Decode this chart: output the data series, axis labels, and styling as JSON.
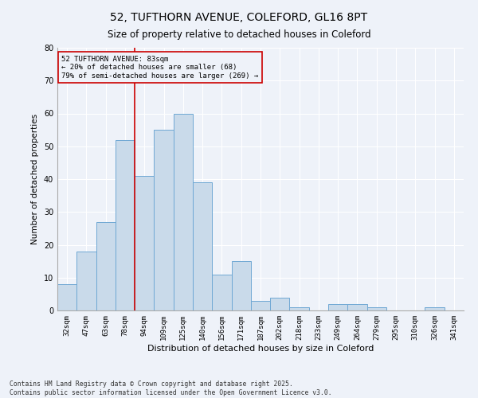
{
  "title1": "52, TUFTHORN AVENUE, COLEFORD, GL16 8PT",
  "title2": "Size of property relative to detached houses in Coleford",
  "xlabel": "Distribution of detached houses by size in Coleford",
  "ylabel": "Number of detached properties",
  "bar_labels": [
    "32sqm",
    "47sqm",
    "63sqm",
    "78sqm",
    "94sqm",
    "109sqm",
    "125sqm",
    "140sqm",
    "156sqm",
    "171sqm",
    "187sqm",
    "202sqm",
    "218sqm",
    "233sqm",
    "249sqm",
    "264sqm",
    "279sqm",
    "295sqm",
    "310sqm",
    "326sqm",
    "341sqm"
  ],
  "bar_values": [
    8,
    18,
    27,
    52,
    41,
    55,
    60,
    39,
    11,
    15,
    3,
    4,
    1,
    0,
    2,
    2,
    1,
    0,
    0,
    1,
    0
  ],
  "bar_color": "#c9daea",
  "bar_edge_color": "#6fa8d4",
  "vline_color": "#cc0000",
  "vline_x": 3.5,
  "annotation_text": "52 TUFTHORN AVENUE: 83sqm\n← 20% of detached houses are smaller (68)\n79% of semi-detached houses are larger (269) →",
  "annotation_box_color": "#cc0000",
  "ylim": [
    0,
    80
  ],
  "yticks": [
    0,
    10,
    20,
    30,
    40,
    50,
    60,
    70,
    80
  ],
  "footnote": "Contains HM Land Registry data © Crown copyright and database right 2025.\nContains public sector information licensed under the Open Government Licence v3.0.",
  "bg_color": "#eef2f9",
  "grid_color": "#ffffff",
  "title_fontsize": 10,
  "subtitle_fontsize": 8.5,
  "annotation_fontsize": 6.5,
  "footnote_fontsize": 5.8,
  "ylabel_fontsize": 7.5,
  "xlabel_fontsize": 8,
  "tick_fontsize": 6.5,
  "ytick_fontsize": 7
}
